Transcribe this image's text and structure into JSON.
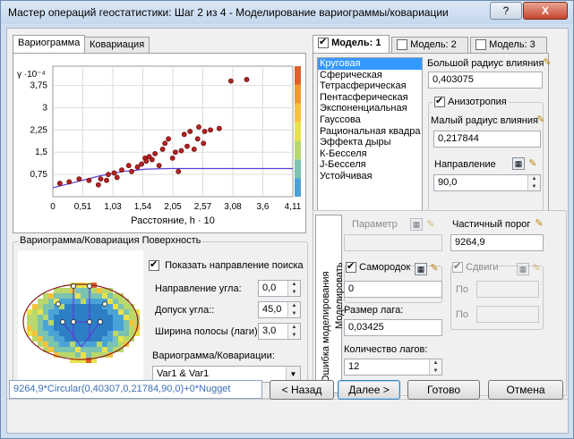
{
  "window": {
    "title": "Мастер операций геостатистики: Шаг 2 из 4 - Моделирование вариограммы/ковариации",
    "help_label": "?",
    "close_label": "X"
  },
  "left_tabs": [
    {
      "label": "Вариограмма"
    },
    {
      "label": "Ковариация"
    }
  ],
  "chart_data": {
    "type": "scatter",
    "ylabel": "γ ·10⁻⁴",
    "xlabel": "Расстояние, h · 10",
    "x_ticks": [
      "0",
      "0,51",
      "1,03",
      "1,54",
      "2,05",
      "2,57",
      "3,08",
      "3,6",
      "4,11"
    ],
    "y_ticks": [
      "0,75",
      "1,5",
      "2,25",
      "3",
      "3,75"
    ],
    "xlim": [
      0,
      4.11
    ],
    "ylim": [
      0,
      4.4
    ],
    "points": [
      [
        0.12,
        0.45
      ],
      [
        0.28,
        0.5
      ],
      [
        0.45,
        0.6
      ],
      [
        0.62,
        0.55
      ],
      [
        0.78,
        0.4
      ],
      [
        0.82,
        0.6
      ],
      [
        0.92,
        0.55
      ],
      [
        0.95,
        0.75
      ],
      [
        1.05,
        0.8
      ],
      [
        1.1,
        0.65
      ],
      [
        1.18,
        0.9
      ],
      [
        1.3,
        1.05
      ],
      [
        1.35,
        0.85
      ],
      [
        1.45,
        1.0
      ],
      [
        1.52,
        1.1
      ],
      [
        1.58,
        1.3
      ],
      [
        1.6,
        1.2
      ],
      [
        1.65,
        1.35
      ],
      [
        1.7,
        1.25
      ],
      [
        1.75,
        1.45
      ],
      [
        1.82,
        1.05
      ],
      [
        1.88,
        1.6
      ],
      [
        1.92,
        1.8
      ],
      [
        1.98,
        1.95
      ],
      [
        2.05,
        1.3
      ],
      [
        2.1,
        1.5
      ],
      [
        2.15,
        0.85
      ],
      [
        2.2,
        1.55
      ],
      [
        2.25,
        2.1
      ],
      [
        2.3,
        1.7
      ],
      [
        2.35,
        2.2
      ],
      [
        2.42,
        1.6
      ],
      [
        2.5,
        2.35
      ],
      [
        2.6,
        2.2
      ],
      [
        2.7,
        2.25
      ],
      [
        2.85,
        2.3
      ],
      [
        3.05,
        3.9
      ],
      [
        3.32,
        3.95
      ],
      [
        2.48,
        1.95
      ],
      [
        2.58,
        1.8
      ]
    ],
    "model_line": [
      [
        0,
        0.3
      ],
      [
        0.4,
        0.5
      ],
      [
        0.8,
        0.7
      ],
      [
        1.2,
        0.85
      ],
      [
        1.6,
        0.93
      ],
      [
        2.0,
        0.95
      ],
      [
        4.11,
        0.95
      ]
    ],
    "colors": {
      "point": "#b22222",
      "line": "#5a3fd6"
    }
  },
  "surface": {
    "group_label": "Вариограмма/Ковариация Поверхность",
    "show_direction_label": "Показать направление поиска",
    "show_direction_checked": true,
    "angle_dir_label": "Направление угла:",
    "angle_dir_value": "0,0",
    "angle_tol_label": "Допуск угла::",
    "angle_tol_value": "45,0",
    "band_width_label": "Ширина полосы (лаги):",
    "band_width_value": "3,0",
    "vario_cov_label": "Вариограмма/Ковариации:",
    "vario_cov_value": "Var1 & Var1"
  },
  "model_tabs": [
    {
      "label": "Модель: 1",
      "checked": true
    },
    {
      "label": "Модель: 2",
      "checked": false
    },
    {
      "label": "Модель: 3",
      "checked": false
    }
  ],
  "model_list": [
    "Круговая",
    "Сферическая",
    "Тетрасферическая",
    "Пентасферическая",
    "Экспоненциальная",
    "Гауссова",
    "Рациональная квадра",
    "Эффекта дыры",
    "К-Бесселя",
    "J-Бесселя",
    "Устойчивая"
  ],
  "model": {
    "major_range_label": "Большой радиус влияния",
    "major_range_value": "0,403075",
    "anisotropy_label": "Анизотропия",
    "anisotropy_checked": true,
    "minor_range_label": "Малый радиус влияния",
    "minor_range_value": "0,217844",
    "direction_label": "Направление",
    "direction_value": "90,0",
    "param_label": "Параметр",
    "partial_sill_label": "Частичный порог",
    "partial_sill_value": "9264,9",
    "modeling_vlabel": "Моделировать",
    "nugget_label": "Самородок",
    "nugget_checked": true,
    "nugget_value": "0",
    "shifts_label": "Сдвиги",
    "shifts_checked": true,
    "shift_po1": "По",
    "shift_po2": "По",
    "lag_size_label": "Размер лага:",
    "lag_size_value": "0,03425",
    "lag_count_label": "Количество лагов:",
    "lag_count_value": "12",
    "error_vlabel": "Ошибка моделирования"
  },
  "footer": {
    "formula": "9264,9*Circular(0,40307,0,21784,90,0)+0*Nugget",
    "back_label": "< Назад",
    "next_label": "Далее >",
    "finish_label": "Готово",
    "cancel_label": "Отмена"
  }
}
